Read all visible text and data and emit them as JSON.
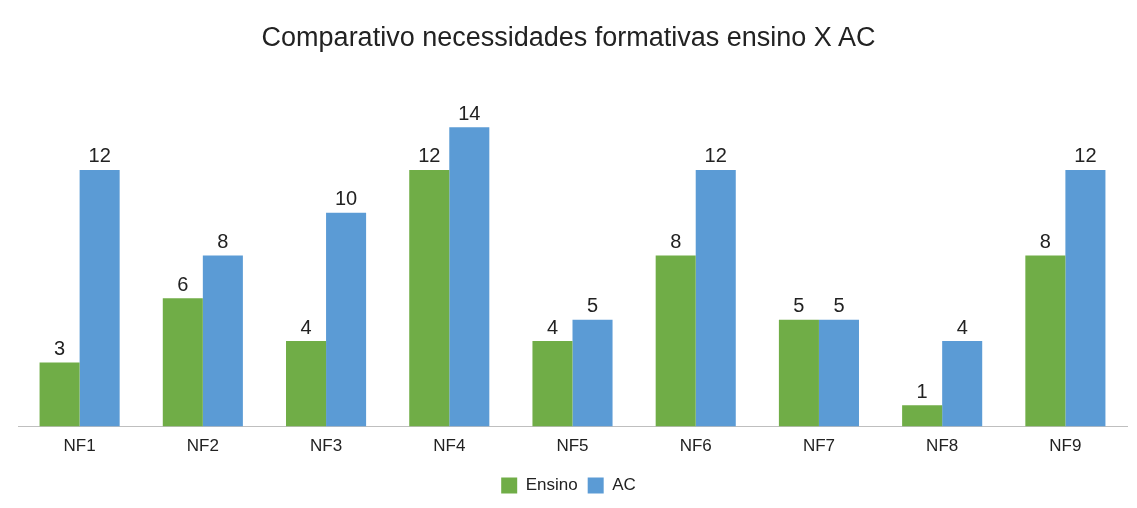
{
  "chart_data": {
    "type": "bar",
    "title": "Comparativo necessidades formativas ensino X AC",
    "categories": [
      "NF1",
      "NF2",
      "NF3",
      "NF4",
      "NF5",
      "NF6",
      "NF7",
      "NF8",
      "NF9"
    ],
    "series": [
      {
        "name": "Ensino",
        "color": "#70ad47",
        "values": [
          3,
          6,
          4,
          12,
          4,
          8,
          5,
          1,
          8
        ]
      },
      {
        "name": "AC",
        "color": "#5b9bd5",
        "values": [
          12,
          8,
          10,
          14,
          5,
          12,
          5,
          4,
          12
        ]
      }
    ],
    "relative": false,
    "tick_labels": "x",
    "data_labels": true,
    "grid": false,
    "legend": "bottom"
  }
}
